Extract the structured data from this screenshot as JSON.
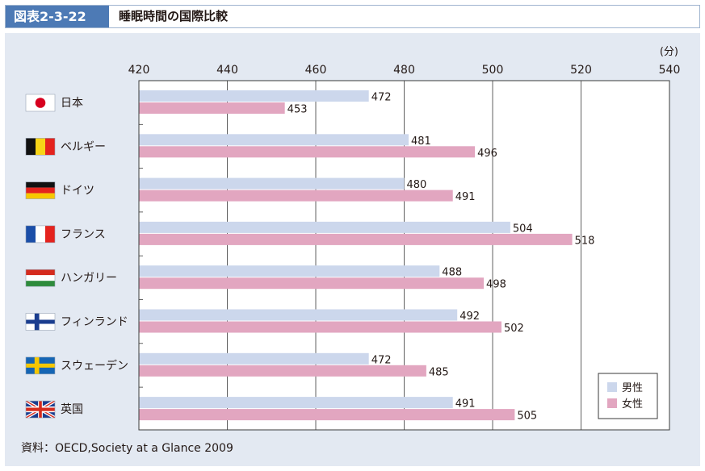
{
  "figure": {
    "label": "図表2-3-22",
    "title": "睡眠時間の国際比較",
    "source": "資料：OECD,Society at a Glance 2009"
  },
  "chart_data": {
    "type": "bar",
    "orientation": "horizontal",
    "unit": "(分)",
    "xlim": [
      420,
      540
    ],
    "ticks": [
      420,
      440,
      460,
      480,
      500,
      520,
      540
    ],
    "grid": true,
    "legend_position": "bottom-right",
    "categories": [
      "日本",
      "ベルギー",
      "ドイツ",
      "フランス",
      "ハンガリー",
      "フィンランド",
      "スウェーデン",
      "英国"
    ],
    "flags": [
      "japan-flag-icon",
      "belgium-flag-icon",
      "germany-flag-icon",
      "france-flag-icon",
      "hungary-flag-icon",
      "finland-flag-icon",
      "sweden-flag-icon",
      "uk-flag-icon"
    ],
    "series": [
      {
        "name": "男性",
        "color": "#ccd7ec",
        "values": [
          472,
          481,
          480,
          504,
          488,
          492,
          472,
          491
        ]
      },
      {
        "name": "女性",
        "color": "#e2a6c0",
        "values": [
          453,
          496,
          491,
          518,
          498,
          502,
          485,
          505
        ]
      }
    ]
  }
}
